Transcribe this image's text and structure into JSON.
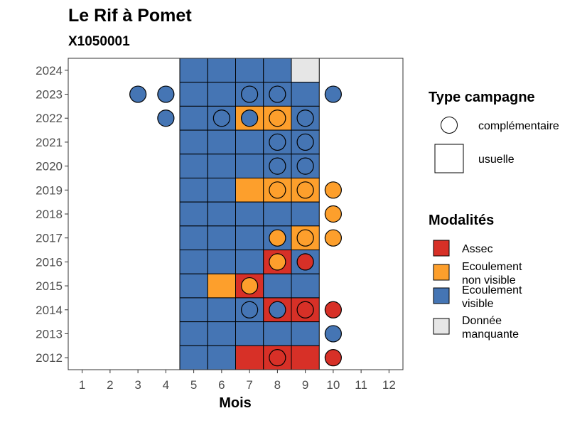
{
  "colors": {
    "Assec": "#d73027",
    "Ecoulement non visible": "#fd9f2c",
    "Ecoulement visible": "#4575b4",
    "Donnée manquante": "#e6e6e6"
  },
  "chart_data": {
    "type": "heatmap",
    "title": "Le Rif à Pomet",
    "subtitle": "X1050001",
    "xlabel": "Mois",
    "ylabel": "",
    "x_ticks": [
      "1",
      "2",
      "3",
      "4",
      "5",
      "6",
      "7",
      "8",
      "9",
      "10",
      "11",
      "12"
    ],
    "y_ticks": [
      "2024",
      "2023",
      "2022",
      "2021",
      "2020",
      "2019",
      "2018",
      "2017",
      "2016",
      "2015",
      "2014",
      "2013",
      "2012"
    ],
    "xlim": [
      0.5,
      12.5
    ],
    "ylim": [
      2011.5,
      2024.5
    ],
    "legend_type": {
      "title": "Type campagne",
      "items": [
        {
          "label": "complémentaire",
          "shape": "circle"
        },
        {
          "label": "usuelle",
          "shape": "square"
        }
      ]
    },
    "legend_modalites": {
      "title": "Modalités",
      "items": [
        {
          "key": "Assec",
          "lines": [
            "Assec"
          ]
        },
        {
          "key": "Ecoulement non visible",
          "lines": [
            "Ecoulement",
            "non visible"
          ]
        },
        {
          "key": "Ecoulement visible",
          "lines": [
            "Ecoulement",
            "visible"
          ]
        },
        {
          "key": "Donnée manquante",
          "lines": [
            "Donnée",
            "manquante"
          ]
        }
      ]
    },
    "usuelle": [
      {
        "year": 2024,
        "month": 5,
        "status": "Ecoulement visible"
      },
      {
        "year": 2024,
        "month": 6,
        "status": "Ecoulement visible"
      },
      {
        "year": 2024,
        "month": 7,
        "status": "Ecoulement visible"
      },
      {
        "year": 2024,
        "month": 8,
        "status": "Ecoulement visible"
      },
      {
        "year": 2024,
        "month": 9,
        "status": "Donnée manquante"
      },
      {
        "year": 2023,
        "month": 5,
        "status": "Ecoulement visible"
      },
      {
        "year": 2023,
        "month": 6,
        "status": "Ecoulement visible"
      },
      {
        "year": 2023,
        "month": 7,
        "status": "Ecoulement visible"
      },
      {
        "year": 2023,
        "month": 8,
        "status": "Ecoulement visible"
      },
      {
        "year": 2023,
        "month": 9,
        "status": "Ecoulement visible"
      },
      {
        "year": 2022,
        "month": 5,
        "status": "Ecoulement visible"
      },
      {
        "year": 2022,
        "month": 6,
        "status": "Ecoulement visible"
      },
      {
        "year": 2022,
        "month": 7,
        "status": "Ecoulement non visible"
      },
      {
        "year": 2022,
        "month": 8,
        "status": "Ecoulement non visible"
      },
      {
        "year": 2022,
        "month": 9,
        "status": "Ecoulement visible"
      },
      {
        "year": 2021,
        "month": 5,
        "status": "Ecoulement visible"
      },
      {
        "year": 2021,
        "month": 6,
        "status": "Ecoulement visible"
      },
      {
        "year": 2021,
        "month": 7,
        "status": "Ecoulement visible"
      },
      {
        "year": 2021,
        "month": 8,
        "status": "Ecoulement visible"
      },
      {
        "year": 2021,
        "month": 9,
        "status": "Ecoulement visible"
      },
      {
        "year": 2020,
        "month": 5,
        "status": "Ecoulement visible"
      },
      {
        "year": 2020,
        "month": 6,
        "status": "Ecoulement visible"
      },
      {
        "year": 2020,
        "month": 7,
        "status": "Ecoulement visible"
      },
      {
        "year": 2020,
        "month": 8,
        "status": "Ecoulement visible"
      },
      {
        "year": 2020,
        "month": 9,
        "status": "Ecoulement visible"
      },
      {
        "year": 2019,
        "month": 5,
        "status": "Ecoulement visible"
      },
      {
        "year": 2019,
        "month": 6,
        "status": "Ecoulement visible"
      },
      {
        "year": 2019,
        "month": 7,
        "status": "Ecoulement non visible"
      },
      {
        "year": 2019,
        "month": 8,
        "status": "Ecoulement non visible"
      },
      {
        "year": 2019,
        "month": 9,
        "status": "Ecoulement non visible"
      },
      {
        "year": 2018,
        "month": 5,
        "status": "Ecoulement visible"
      },
      {
        "year": 2018,
        "month": 6,
        "status": "Ecoulement visible"
      },
      {
        "year": 2018,
        "month": 7,
        "status": "Ecoulement visible"
      },
      {
        "year": 2018,
        "month": 8,
        "status": "Ecoulement visible"
      },
      {
        "year": 2018,
        "month": 9,
        "status": "Ecoulement visible"
      },
      {
        "year": 2017,
        "month": 5,
        "status": "Ecoulement visible"
      },
      {
        "year": 2017,
        "month": 6,
        "status": "Ecoulement visible"
      },
      {
        "year": 2017,
        "month": 7,
        "status": "Ecoulement visible"
      },
      {
        "year": 2017,
        "month": 8,
        "status": "Ecoulement visible"
      },
      {
        "year": 2017,
        "month": 9,
        "status": "Ecoulement non visible"
      },
      {
        "year": 2016,
        "month": 5,
        "status": "Ecoulement visible"
      },
      {
        "year": 2016,
        "month": 6,
        "status": "Ecoulement visible"
      },
      {
        "year": 2016,
        "month": 7,
        "status": "Ecoulement visible"
      },
      {
        "year": 2016,
        "month": 8,
        "status": "Assec"
      },
      {
        "year": 2016,
        "month": 9,
        "status": "Ecoulement visible"
      },
      {
        "year": 2015,
        "month": 5,
        "status": "Ecoulement visible"
      },
      {
        "year": 2015,
        "month": 6,
        "status": "Ecoulement non visible"
      },
      {
        "year": 2015,
        "month": 7,
        "status": "Assec"
      },
      {
        "year": 2015,
        "month": 8,
        "status": "Ecoulement visible"
      },
      {
        "year": 2015,
        "month": 9,
        "status": "Ecoulement visible"
      },
      {
        "year": 2014,
        "month": 5,
        "status": "Ecoulement visible"
      },
      {
        "year": 2014,
        "month": 6,
        "status": "Ecoulement visible"
      },
      {
        "year": 2014,
        "month": 7,
        "status": "Ecoulement visible"
      },
      {
        "year": 2014,
        "month": 8,
        "status": "Assec"
      },
      {
        "year": 2014,
        "month": 9,
        "status": "Assec"
      },
      {
        "year": 2013,
        "month": 5,
        "status": "Ecoulement visible"
      },
      {
        "year": 2013,
        "month": 6,
        "status": "Ecoulement visible"
      },
      {
        "year": 2013,
        "month": 7,
        "status": "Ecoulement visible"
      },
      {
        "year": 2013,
        "month": 8,
        "status": "Ecoulement visible"
      },
      {
        "year": 2013,
        "month": 9,
        "status": "Ecoulement visible"
      },
      {
        "year": 2012,
        "month": 5,
        "status": "Ecoulement visible"
      },
      {
        "year": 2012,
        "month": 6,
        "status": "Ecoulement visible"
      },
      {
        "year": 2012,
        "month": 7,
        "status": "Assec"
      },
      {
        "year": 2012,
        "month": 8,
        "status": "Assec"
      },
      {
        "year": 2012,
        "month": 9,
        "status": "Assec"
      }
    ],
    "complementaire": [
      {
        "year": 2023,
        "month": 3,
        "status": "Ecoulement visible"
      },
      {
        "year": 2023,
        "month": 4,
        "status": "Ecoulement visible"
      },
      {
        "year": 2023,
        "month": 7,
        "status": "Ecoulement visible"
      },
      {
        "year": 2023,
        "month": 8,
        "status": "Ecoulement visible"
      },
      {
        "year": 2023,
        "month": 10,
        "status": "Ecoulement visible"
      },
      {
        "year": 2022,
        "month": 4,
        "status": "Ecoulement visible"
      },
      {
        "year": 2022,
        "month": 6,
        "status": "Ecoulement visible"
      },
      {
        "year": 2022,
        "month": 7,
        "status": "Ecoulement visible"
      },
      {
        "year": 2022,
        "month": 8,
        "status": "Ecoulement non visible"
      },
      {
        "year": 2022,
        "month": 9,
        "status": "Ecoulement visible"
      },
      {
        "year": 2021,
        "month": 8,
        "status": "Ecoulement visible"
      },
      {
        "year": 2021,
        "month": 9,
        "status": "Ecoulement visible"
      },
      {
        "year": 2020,
        "month": 8,
        "status": "Ecoulement visible"
      },
      {
        "year": 2020,
        "month": 9,
        "status": "Ecoulement visible"
      },
      {
        "year": 2019,
        "month": 8,
        "status": "Ecoulement non visible"
      },
      {
        "year": 2019,
        "month": 9,
        "status": "Ecoulement non visible"
      },
      {
        "year": 2019,
        "month": 10,
        "status": "Ecoulement non visible"
      },
      {
        "year": 2018,
        "month": 10,
        "status": "Ecoulement non visible"
      },
      {
        "year": 2017,
        "month": 8,
        "status": "Ecoulement non visible"
      },
      {
        "year": 2017,
        "month": 9,
        "status": "Ecoulement non visible"
      },
      {
        "year": 2017,
        "month": 10,
        "status": "Ecoulement non visible"
      },
      {
        "year": 2016,
        "month": 8,
        "status": "Ecoulement non visible"
      },
      {
        "year": 2016,
        "month": 9,
        "status": "Assec"
      },
      {
        "year": 2015,
        "month": 7,
        "status": "Ecoulement non visible"
      },
      {
        "year": 2014,
        "month": 7,
        "status": "Ecoulement visible"
      },
      {
        "year": 2014,
        "month": 8,
        "status": "Ecoulement visible"
      },
      {
        "year": 2014,
        "month": 9,
        "status": "Assec"
      },
      {
        "year": 2014,
        "month": 10,
        "status": "Assec"
      },
      {
        "year": 2013,
        "month": 10,
        "status": "Ecoulement visible"
      },
      {
        "year": 2012,
        "month": 8,
        "status": "Assec"
      },
      {
        "year": 2012,
        "month": 10,
        "status": "Assec"
      }
    ]
  }
}
